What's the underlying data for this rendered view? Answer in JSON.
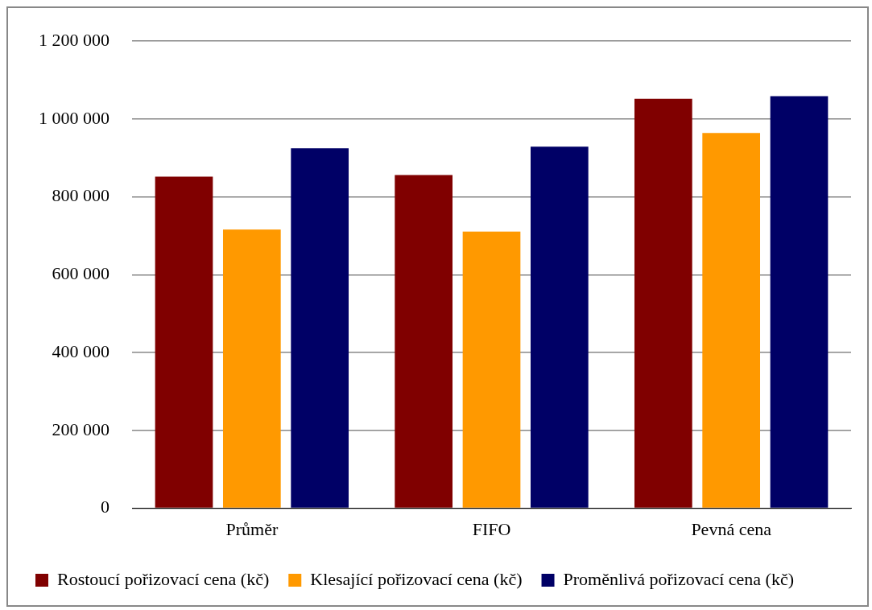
{
  "chart_data": {
    "type": "bar",
    "categories": [
      "Průměr",
      "FIFO",
      "Pevná cena"
    ],
    "series": [
      {
        "name": "Rostoucí pořizovací cena (kč)",
        "color": "#800000",
        "values": [
          852000,
          856000,
          1052000
        ]
      },
      {
        "name": "Klesající pořizovací cena (kč)",
        "color": "#ff9900",
        "values": [
          716000,
          711000,
          964000
        ]
      },
      {
        "name": "Proměnlivá pořizovací cena (kč)",
        "color": "#000066",
        "values": [
          925000,
          929000,
          1059000
        ]
      }
    ],
    "ylim": [
      0,
      1200000
    ],
    "yticks": [
      {
        "value": 0,
        "label": "0"
      },
      {
        "value": 200000,
        "label": "200 000"
      },
      {
        "value": 400000,
        "label": "400 000"
      },
      {
        "value": 600000,
        "label": "600 000"
      },
      {
        "value": 800000,
        "label": "800 000"
      },
      {
        "value": 1000000,
        "label": "1 000 000"
      },
      {
        "value": 1200000,
        "label": "1 200 000"
      }
    ],
    "grid": "y",
    "legend": "bottom"
  }
}
